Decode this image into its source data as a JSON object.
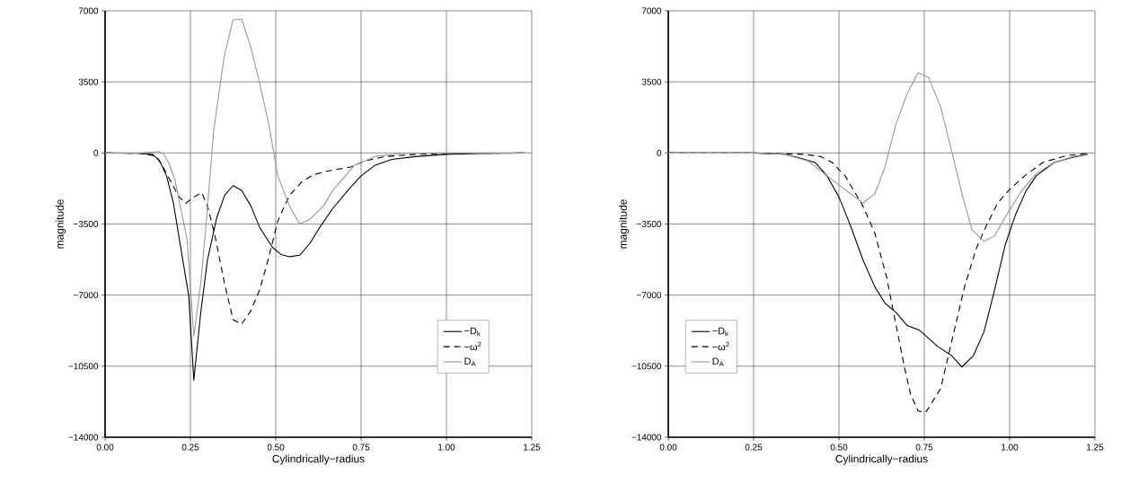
{
  "chart_data": [
    {
      "type": "line",
      "xlabel": "Cylindrically−radius",
      "ylabel": "magnitude",
      "xlim": [
        0,
        1.25
      ],
      "ylim": [
        -14000,
        7000
      ],
      "xticks": [
        {
          "value": 0,
          "label": "0.00"
        },
        {
          "value": 0.25,
          "label": "0.25"
        },
        {
          "value": 0.5,
          "label": "0.50"
        },
        {
          "value": 0.75,
          "label": "0.75"
        },
        {
          "value": 1,
          "label": "1.00"
        },
        {
          "value": 1.25,
          "label": "1.25"
        }
      ],
      "yticks": [
        {
          "value": -14000,
          "label": "−14000"
        },
        {
          "value": -10500,
          "label": "−10500"
        },
        {
          "value": -7000,
          "label": "−7000"
        },
        {
          "value": -3500,
          "label": "−3500"
        },
        0,
        3500,
        7000
      ],
      "grid": true,
      "legend": "bottom right",
      "series": [
        {
          "name": "−D$_{k}$",
          "color": "#000000",
          "line_style": "solid",
          "x": [
            0,
            0.1,
            0.14,
            0.16,
            0.18,
            0.2,
            0.22,
            0.245,
            0.26,
            0.28,
            0.3,
            0.327,
            0.35,
            0.375,
            0.4,
            0.427,
            0.453,
            0.49,
            0.515,
            0.54,
            0.57,
            0.6,
            0.63,
            0.666,
            0.71,
            0.75,
            0.79,
            0.84,
            0.91,
            1.0,
            1.09,
            1.23
          ],
          "values": [
            0,
            -20,
            -80,
            -400,
            -1130,
            -2460,
            -4500,
            -7030,
            -11190,
            -7900,
            -5260,
            -3200,
            -2090,
            -1610,
            -1840,
            -2610,
            -3670,
            -4640,
            -5000,
            -5110,
            -5040,
            -4450,
            -3640,
            -2760,
            -1870,
            -1130,
            -620,
            -320,
            -180,
            -70,
            -30,
            0
          ]
        },
        {
          "name": "−ω$^{2}$",
          "color": "#000000",
          "line_style": "dashed",
          "x": [
            0,
            0.1,
            0.15,
            0.17,
            0.2,
            0.217,
            0.236,
            0.26,
            0.283,
            0.3,
            0.322,
            0.35,
            0.375,
            0.4,
            0.427,
            0.453,
            0.48,
            0.506,
            0.54,
            0.576,
            0.61,
            0.65,
            0.72,
            0.76,
            0.82,
            0.91,
            1.0,
            1.23
          ],
          "values": [
            0,
            -20,
            -150,
            -700,
            -1650,
            -2170,
            -2490,
            -2170,
            -1950,
            -2610,
            -4080,
            -6440,
            -8210,
            -8430,
            -7770,
            -6740,
            -5110,
            -3350,
            -2090,
            -1430,
            -1080,
            -900,
            -690,
            -400,
            -180,
            -70,
            -30,
            0
          ]
        },
        {
          "name": "D$_{A}$",
          "color": "#999999",
          "line_style": "solid",
          "x": [
            0,
            0.1,
            0.14,
            0.156,
            0.17,
            0.186,
            0.204,
            0.22,
            0.24,
            0.26,
            0.28,
            0.296,
            0.318,
            0.349,
            0.375,
            0.4,
            0.427,
            0.453,
            0.48,
            0.506,
            0.54,
            0.57,
            0.6,
            0.64,
            0.666,
            0.73,
            0.79,
            0.87,
            1.0,
            1.23
          ],
          "values": [
            0,
            0,
            40,
            70,
            -30,
            -470,
            -1280,
            -2610,
            -4230,
            -9020,
            -6440,
            -3490,
            1080,
            4760,
            6560,
            6590,
            5200,
            3430,
            1370,
            -1130,
            -2610,
            -3490,
            -3270,
            -2610,
            -1870,
            -620,
            -180,
            -30,
            0,
            0
          ]
        }
      ]
    },
    {
      "type": "line",
      "xlabel": "Cylindrically−radius",
      "ylabel": "magnitude",
      "xlim": [
        0,
        1.25
      ],
      "ylim": [
        -14000,
        7000
      ],
      "xticks": [
        {
          "value": 0,
          "label": "0.00"
        },
        {
          "value": 0.25,
          "label": "0.25"
        },
        {
          "value": 0.5,
          "label": "0.50"
        },
        {
          "value": 0.75,
          "label": "0.75"
        },
        {
          "value": 1,
          "label": "1.00"
        },
        {
          "value": 1.25,
          "label": "1.25"
        }
      ],
      "yticks": [
        {
          "value": -14000,
          "label": "−14000"
        },
        {
          "value": -10500,
          "label": "−10500"
        },
        {
          "value": -7000,
          "label": "−7000"
        },
        {
          "value": -3500,
          "label": "−3500"
        },
        0,
        3500,
        7000
      ],
      "grid": true,
      "legend": "bottom left",
      "series": [
        {
          "name": "−D$_{k}$",
          "color": "#000000",
          "line_style": "solid",
          "x": [
            0,
            0.25,
            0.34,
            0.386,
            0.43,
            0.465,
            0.5,
            0.535,
            0.57,
            0.605,
            0.635,
            0.666,
            0.7,
            0.736,
            0.79,
            0.83,
            0.86,
            0.894,
            0.925,
            0.956,
            0.987,
            1.017,
            1.048,
            1.078,
            1.13,
            1.185,
            1.228
          ],
          "values": [
            0,
            0,
            -60,
            -250,
            -470,
            -1130,
            -2170,
            -3640,
            -5260,
            -6590,
            -7400,
            -7840,
            -8500,
            -8730,
            -9540,
            -9980,
            -10540,
            -9980,
            -8800,
            -6740,
            -4530,
            -3050,
            -1870,
            -1130,
            -470,
            -220,
            -70
          ]
        },
        {
          "name": "−ω$^{2}$",
          "color": "#000000",
          "line_style": "dashed",
          "x": [
            0,
            0.25,
            0.4,
            0.447,
            0.48,
            0.518,
            0.544,
            0.57,
            0.605,
            0.64,
            0.666,
            0.692,
            0.71,
            0.732,
            0.754,
            0.798,
            0.833,
            0.868,
            0.903,
            0.93,
            0.965,
            1.0,
            1.044,
            1.097,
            1.167,
            1.228
          ],
          "values": [
            0,
            0,
            -70,
            -180,
            -470,
            -1130,
            -1870,
            -2610,
            -3940,
            -6150,
            -8360,
            -10570,
            -11890,
            -12710,
            -12780,
            -11600,
            -9090,
            -6590,
            -4670,
            -3640,
            -2460,
            -1800,
            -1130,
            -470,
            -130,
            -30
          ]
        },
        {
          "name": "D$_{A}$",
          "color": "#999999",
          "line_style": "solid",
          "x": [
            0,
            0.25,
            0.34,
            0.41,
            0.465,
            0.5,
            0.535,
            0.57,
            0.605,
            0.635,
            0.666,
            0.7,
            0.732,
            0.763,
            0.798,
            0.833,
            0.864,
            0.89,
            0.925,
            0.956,
            0.991,
            1.035,
            1.078,
            1.13,
            1.185,
            1.228
          ],
          "values": [
            0,
            0,
            -60,
            -400,
            -1130,
            -1580,
            -2020,
            -2460,
            -2020,
            -690,
            1370,
            2920,
            3950,
            3700,
            2260,
            -100,
            -2240,
            -3790,
            -4350,
            -4080,
            -3050,
            -1870,
            -1020,
            -470,
            -180,
            -60
          ]
        }
      ]
    }
  ]
}
